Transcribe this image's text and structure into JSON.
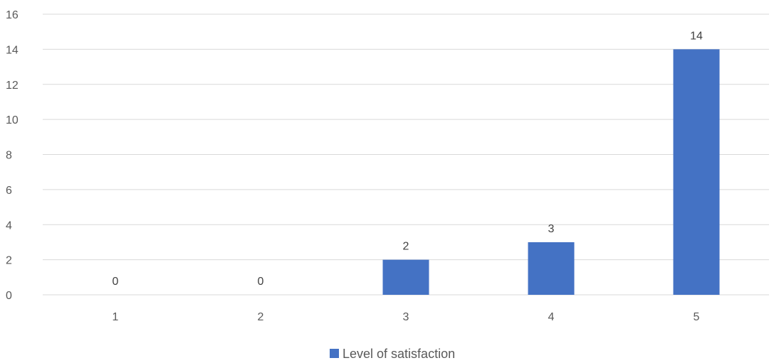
{
  "chart_data": {
    "type": "bar",
    "categories": [
      "1",
      "2",
      "3",
      "4",
      "5"
    ],
    "series": [
      {
        "name": "Level of satisfaction",
        "values": [
          0,
          0,
          2,
          3,
          14
        ],
        "color": "#4472C4"
      }
    ],
    "data_labels": [
      "0",
      "0",
      "2",
      "3",
      "14"
    ],
    "y_ticks": [
      "0",
      "2",
      "4",
      "6",
      "8",
      "10",
      "12",
      "14",
      "16"
    ],
    "ylim": [
      0,
      16
    ],
    "grid": true,
    "legend_position": "bottom",
    "title": "",
    "xlabel": "",
    "ylabel": ""
  }
}
